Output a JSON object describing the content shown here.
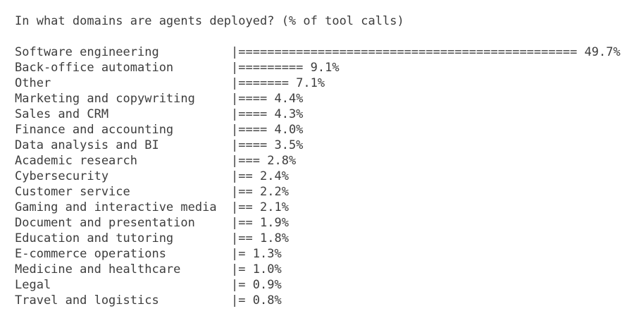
{
  "page": {
    "background_color": "#ffffff",
    "text_color": "#3d3d3d"
  },
  "title": "In what domains are agents deployed? (% of tool calls)",
  "chart_data": {
    "type": "bar",
    "orientation": "horizontal",
    "style": "ascii-terminal",
    "title": "In what domains are agents deployed? (% of tool calls)",
    "unit": "%",
    "axis_glyph": "|",
    "bar_glyph": "=",
    "label_column_chars": 30,
    "grid": false,
    "legend": false,
    "categories": [
      "Software engineering",
      "Back-office automation",
      "Other",
      "Marketing and copywriting",
      "Sales and CRM",
      "Finance and accounting",
      "Data analysis and BI",
      "Academic research",
      "Cybersecurity",
      "Customer service",
      "Gaming and interactive media",
      "Document and presentation",
      "Education and tutoring",
      "E-commerce operations",
      "Medicine and healthcare",
      "Legal",
      "Travel and logistics"
    ],
    "values": [
      49.7,
      9.1,
      7.1,
      4.4,
      4.3,
      4.0,
      3.5,
      2.8,
      2.4,
      2.2,
      2.1,
      1.9,
      1.8,
      1.3,
      1.0,
      0.9,
      0.8
    ],
    "value_labels": [
      "49.7%",
      "9.1%",
      "7.1%",
      "4.4%",
      "4.3%",
      "4.0%",
      "3.5%",
      "2.8%",
      "2.4%",
      "2.2%",
      "2.1%",
      "1.9%",
      "1.8%",
      "1.3%",
      "1.0%",
      "0.9%",
      "0.8%"
    ],
    "bar_lengths_chars": [
      47,
      9,
      7,
      4,
      4,
      4,
      4,
      3,
      2,
      2,
      2,
      2,
      2,
      1,
      1,
      1,
      1
    ]
  }
}
